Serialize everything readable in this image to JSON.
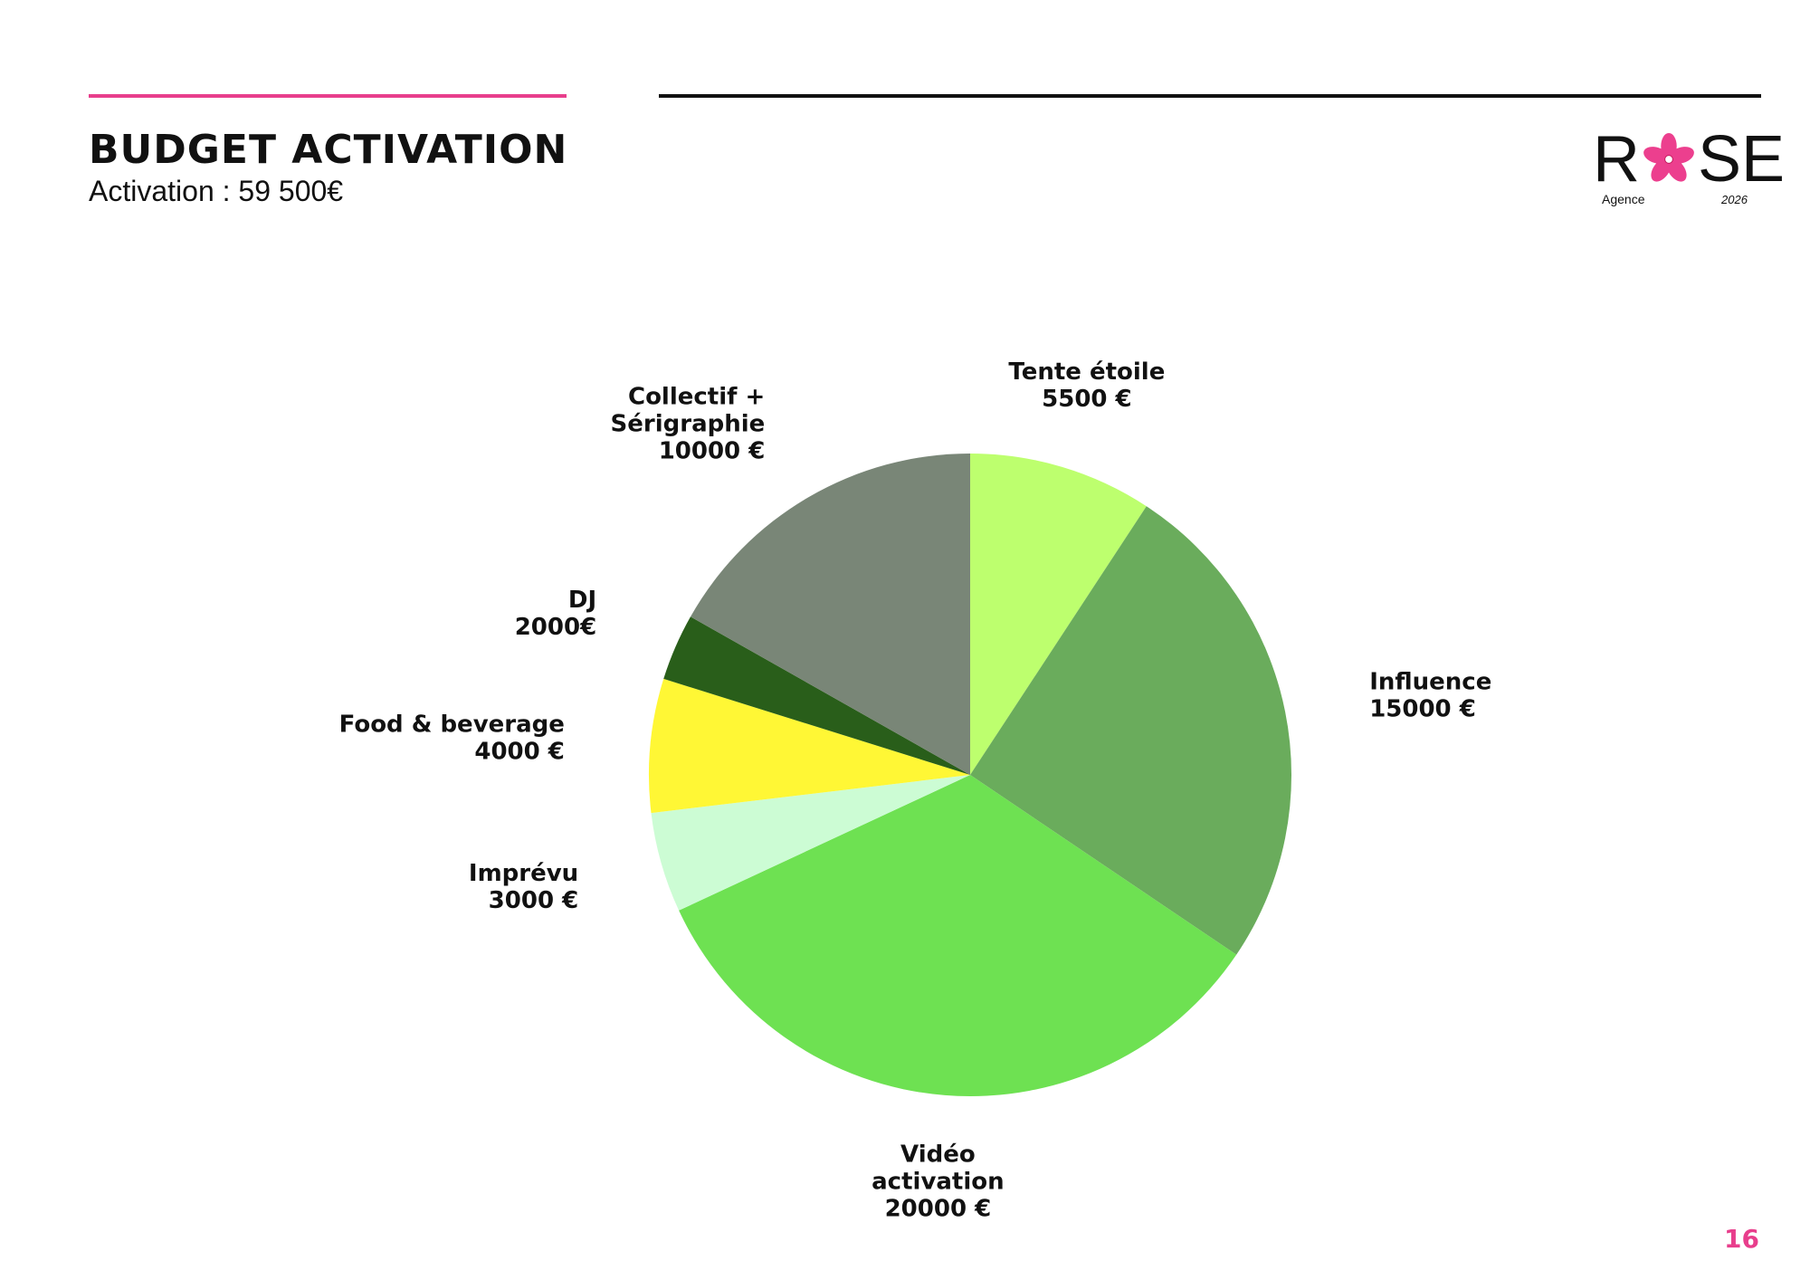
{
  "header": {
    "title": "BUDGET ACTIVATION",
    "subtitle": "Activation : 59 500€"
  },
  "logo": {
    "word_start": "R",
    "word_end": "SE",
    "sub_left": "Agence",
    "sub_right": "2026",
    "flower_color": "#ec3f8e"
  },
  "page_number": "16",
  "colors": {
    "accent": "#e83e8c",
    "rule": "#111111"
  },
  "chart_data": {
    "type": "pie",
    "title": "",
    "unit": "€",
    "start_angle_deg": 0,
    "direction": "clockwise",
    "slices": [
      {
        "label": [
          "Tente étoile"
        ],
        "value": 5500,
        "value_label": "5500 €",
        "color": "#bdff6e"
      },
      {
        "label": [
          "Influence"
        ],
        "value": 15000,
        "value_label": "15000 €",
        "color": "#6aac5c"
      },
      {
        "label": [
          "Vidéo",
          "activation"
        ],
        "value": 20000,
        "value_label": "20000 €",
        "color": "#6ee152"
      },
      {
        "label": [
          "Imprévu"
        ],
        "value": 3000,
        "value_label": "3000 €",
        "color": "#ccfcd4"
      },
      {
        "label": [
          "Food & beverage"
        ],
        "value": 4000,
        "value_label": "4000 €",
        "color": "#fff735"
      },
      {
        "label": [
          "DJ"
        ],
        "value": 2000,
        "value_label": "2000€",
        "color": "#295e1a"
      },
      {
        "label": [
          "Collectif +",
          "Sérigraphie"
        ],
        "value": 10000,
        "value_label": "10000 €",
        "color": "#798677"
      }
    ]
  }
}
